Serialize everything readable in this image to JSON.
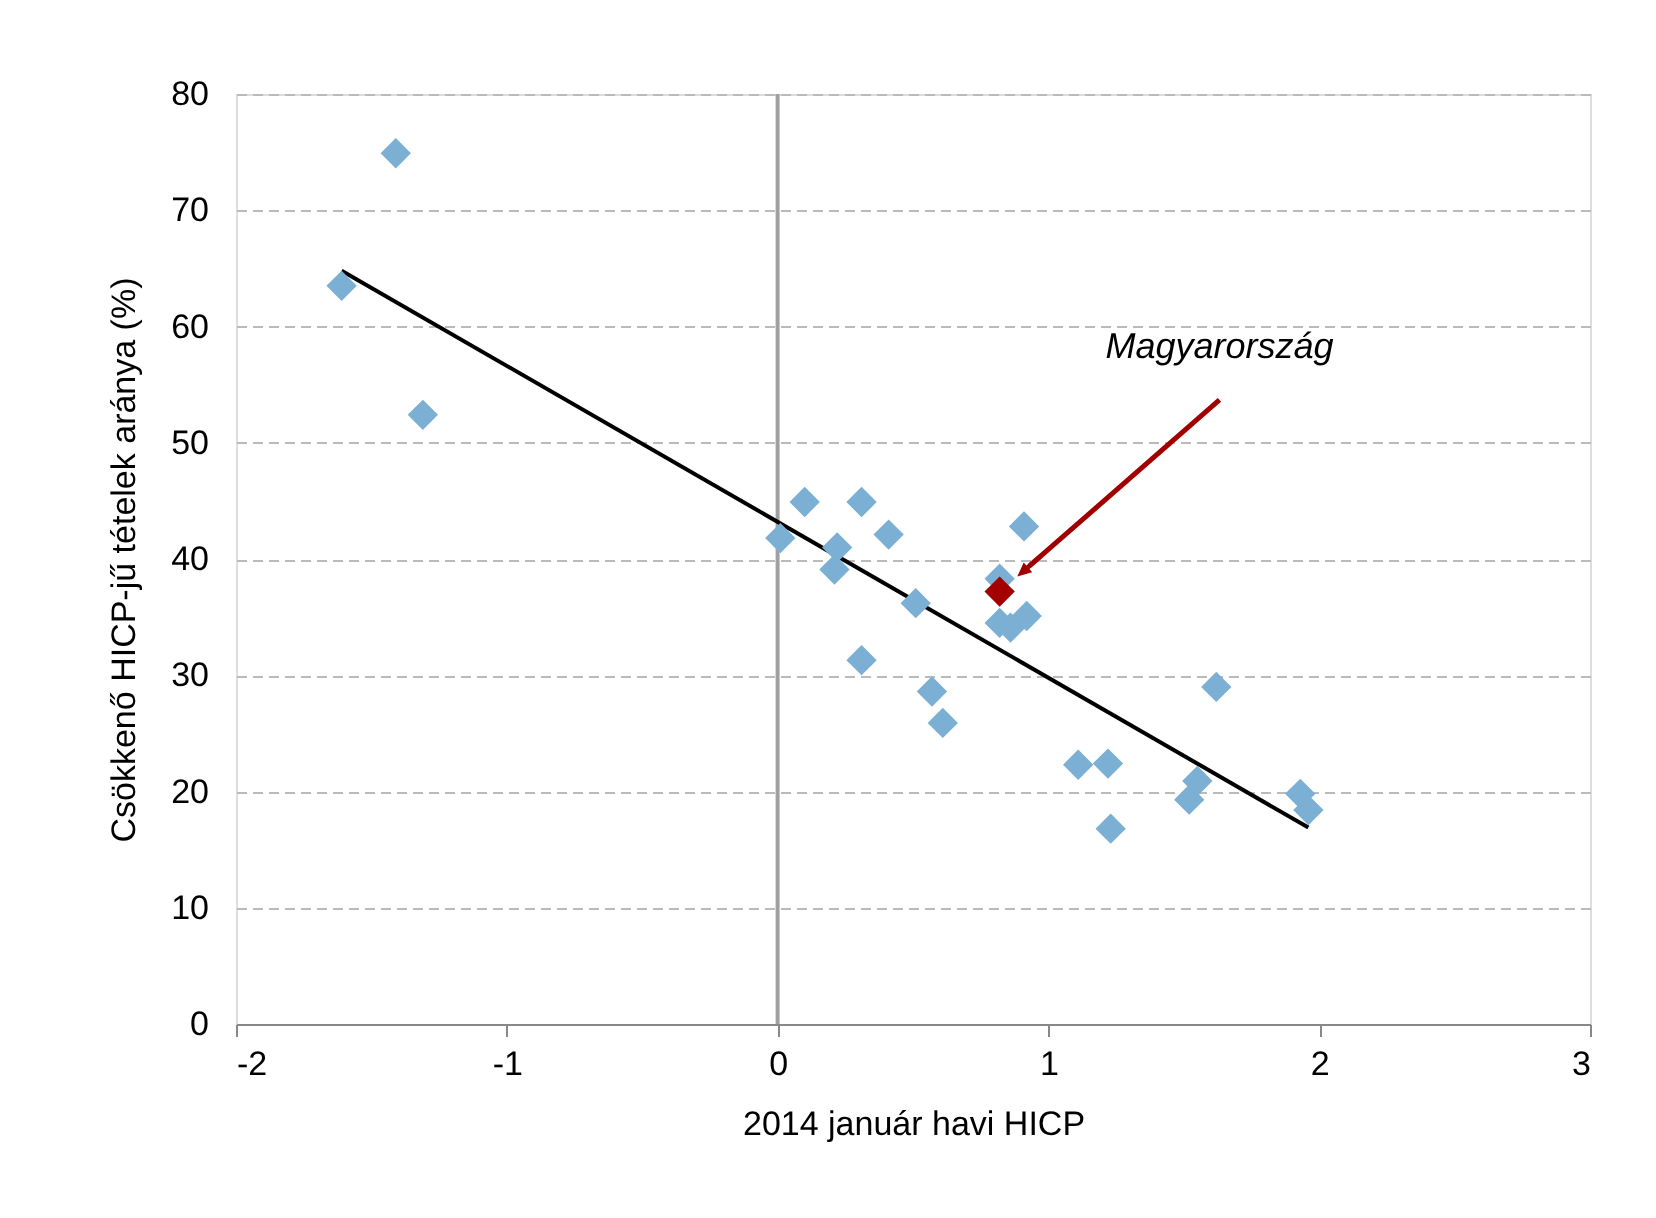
{
  "chart_data": {
    "type": "scatter",
    "xlabel": "2014 január havi HICP",
    "ylabel": "Csökkenő HICP-jű tételek aránya (%)",
    "xlim": [
      -2,
      3
    ],
    "xticks": [
      -2,
      -1,
      0,
      1,
      2,
      3
    ],
    "ylim": [
      0,
      80
    ],
    "yticks": [
      0,
      10,
      20,
      30,
      40,
      50,
      60,
      70,
      80
    ],
    "grid": "y",
    "marker": "diamond",
    "ref_lines": [
      {
        "axis": "x",
        "value": 0,
        "color": "#a0a0a0"
      }
    ],
    "annotations": [
      {
        "text": "Magyarország",
        "x": 0.93,
        "y": 39.4
      }
    ],
    "series": [
      {
        "color": "#7bafd4",
        "x": [
          -1.41,
          -1.61,
          -1.31,
          0.01,
          0.1,
          0.31,
          0.41,
          0.22,
          0.21,
          0.51,
          0.31,
          0.57,
          0.61,
          0.91,
          0.82,
          0.82,
          0.86,
          0.92,
          1.11,
          1.22,
          1.23,
          1.62,
          1.52,
          1.55,
          1.93,
          1.96
        ],
        "values": [
          74.9,
          63.5,
          52.4,
          41.8,
          44.9,
          44.9,
          42.1,
          41.0,
          39.1,
          36.2,
          31.3,
          28.6,
          25.9,
          42.8,
          38.3,
          34.5,
          34.1,
          35.1,
          22.3,
          22.4,
          16.8,
          29.0,
          19.3,
          20.9,
          19.8,
          18.4
        ]
      },
      {
        "color": "#a50000",
        "x": [
          0.82
        ],
        "values": [
          37.2
        ]
      },
      {
        "type": "line",
        "marker": "none",
        "color": "#000000",
        "x": [
          -1.61,
          1.96
        ],
        "values": [
          64.8,
          16.9
        ]
      }
    ]
  }
}
